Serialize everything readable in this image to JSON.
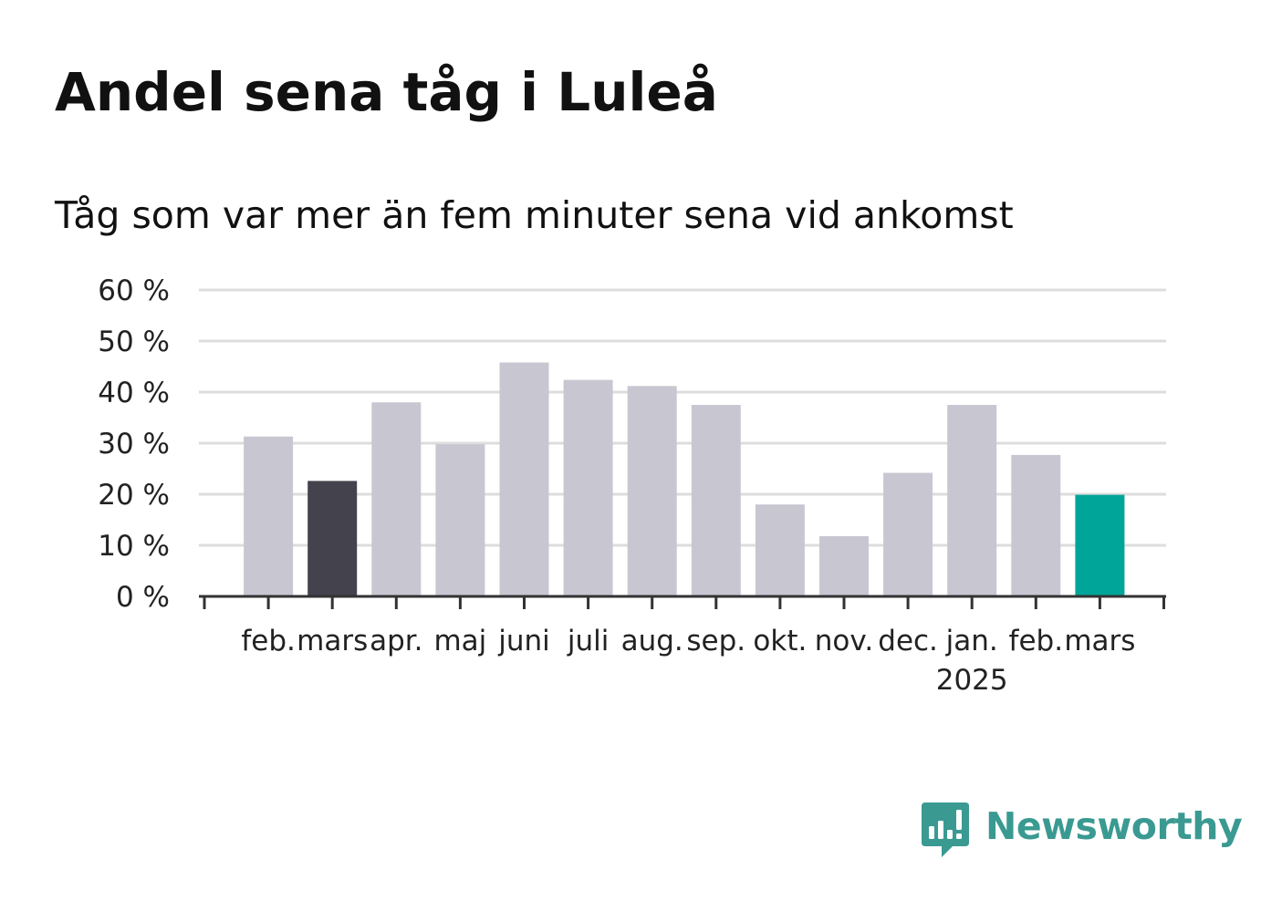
{
  "title": "Andel sena tåg i Luleå",
  "subtitle": "Tåg som var mer än fem minuter sena vid ankomst",
  "brand": {
    "name": "Newsworthy",
    "icon": "newsworthy-chart-bubble-icon",
    "color": "#3a9a92"
  },
  "colors": {
    "default": "#c8c7d1",
    "highlight_previous_year": "#43424d",
    "highlight_latest": "#00a599",
    "grid": "#dddddd",
    "axis": "#333333"
  },
  "chart_data": {
    "type": "bar",
    "title": "Andel sena tåg i Luleå",
    "subtitle": "Tåg som var mer än fem minuter sena vid ankomst",
    "categories": [
      "feb.",
      "mars",
      "apr.",
      "maj",
      "juni",
      "juli",
      "aug.",
      "sep.",
      "okt.",
      "nov.",
      "dec.",
      "jan.",
      "feb.",
      "mars"
    ],
    "year_labels": [
      "",
      "",
      "",
      "",
      "",
      "",
      "",
      "",
      "",
      "",
      "",
      "2025",
      "",
      ""
    ],
    "values": [
      31.3,
      22.6,
      38.0,
      29.8,
      45.8,
      42.4,
      41.2,
      37.5,
      18.0,
      11.8,
      24.2,
      37.5,
      27.7,
      19.9
    ],
    "highlight": [
      "default",
      "highlight_previous_year",
      "default",
      "default",
      "default",
      "default",
      "default",
      "default",
      "default",
      "default",
      "default",
      "default",
      "default",
      "highlight_latest"
    ],
    "yticks": [
      "0 %",
      "10 %",
      "20 %",
      "30 %",
      "40 %",
      "50 %",
      "60 %"
    ],
    "ylim": [
      0,
      60
    ],
    "unit": "%",
    "grid": true,
    "legend": "none"
  }
}
